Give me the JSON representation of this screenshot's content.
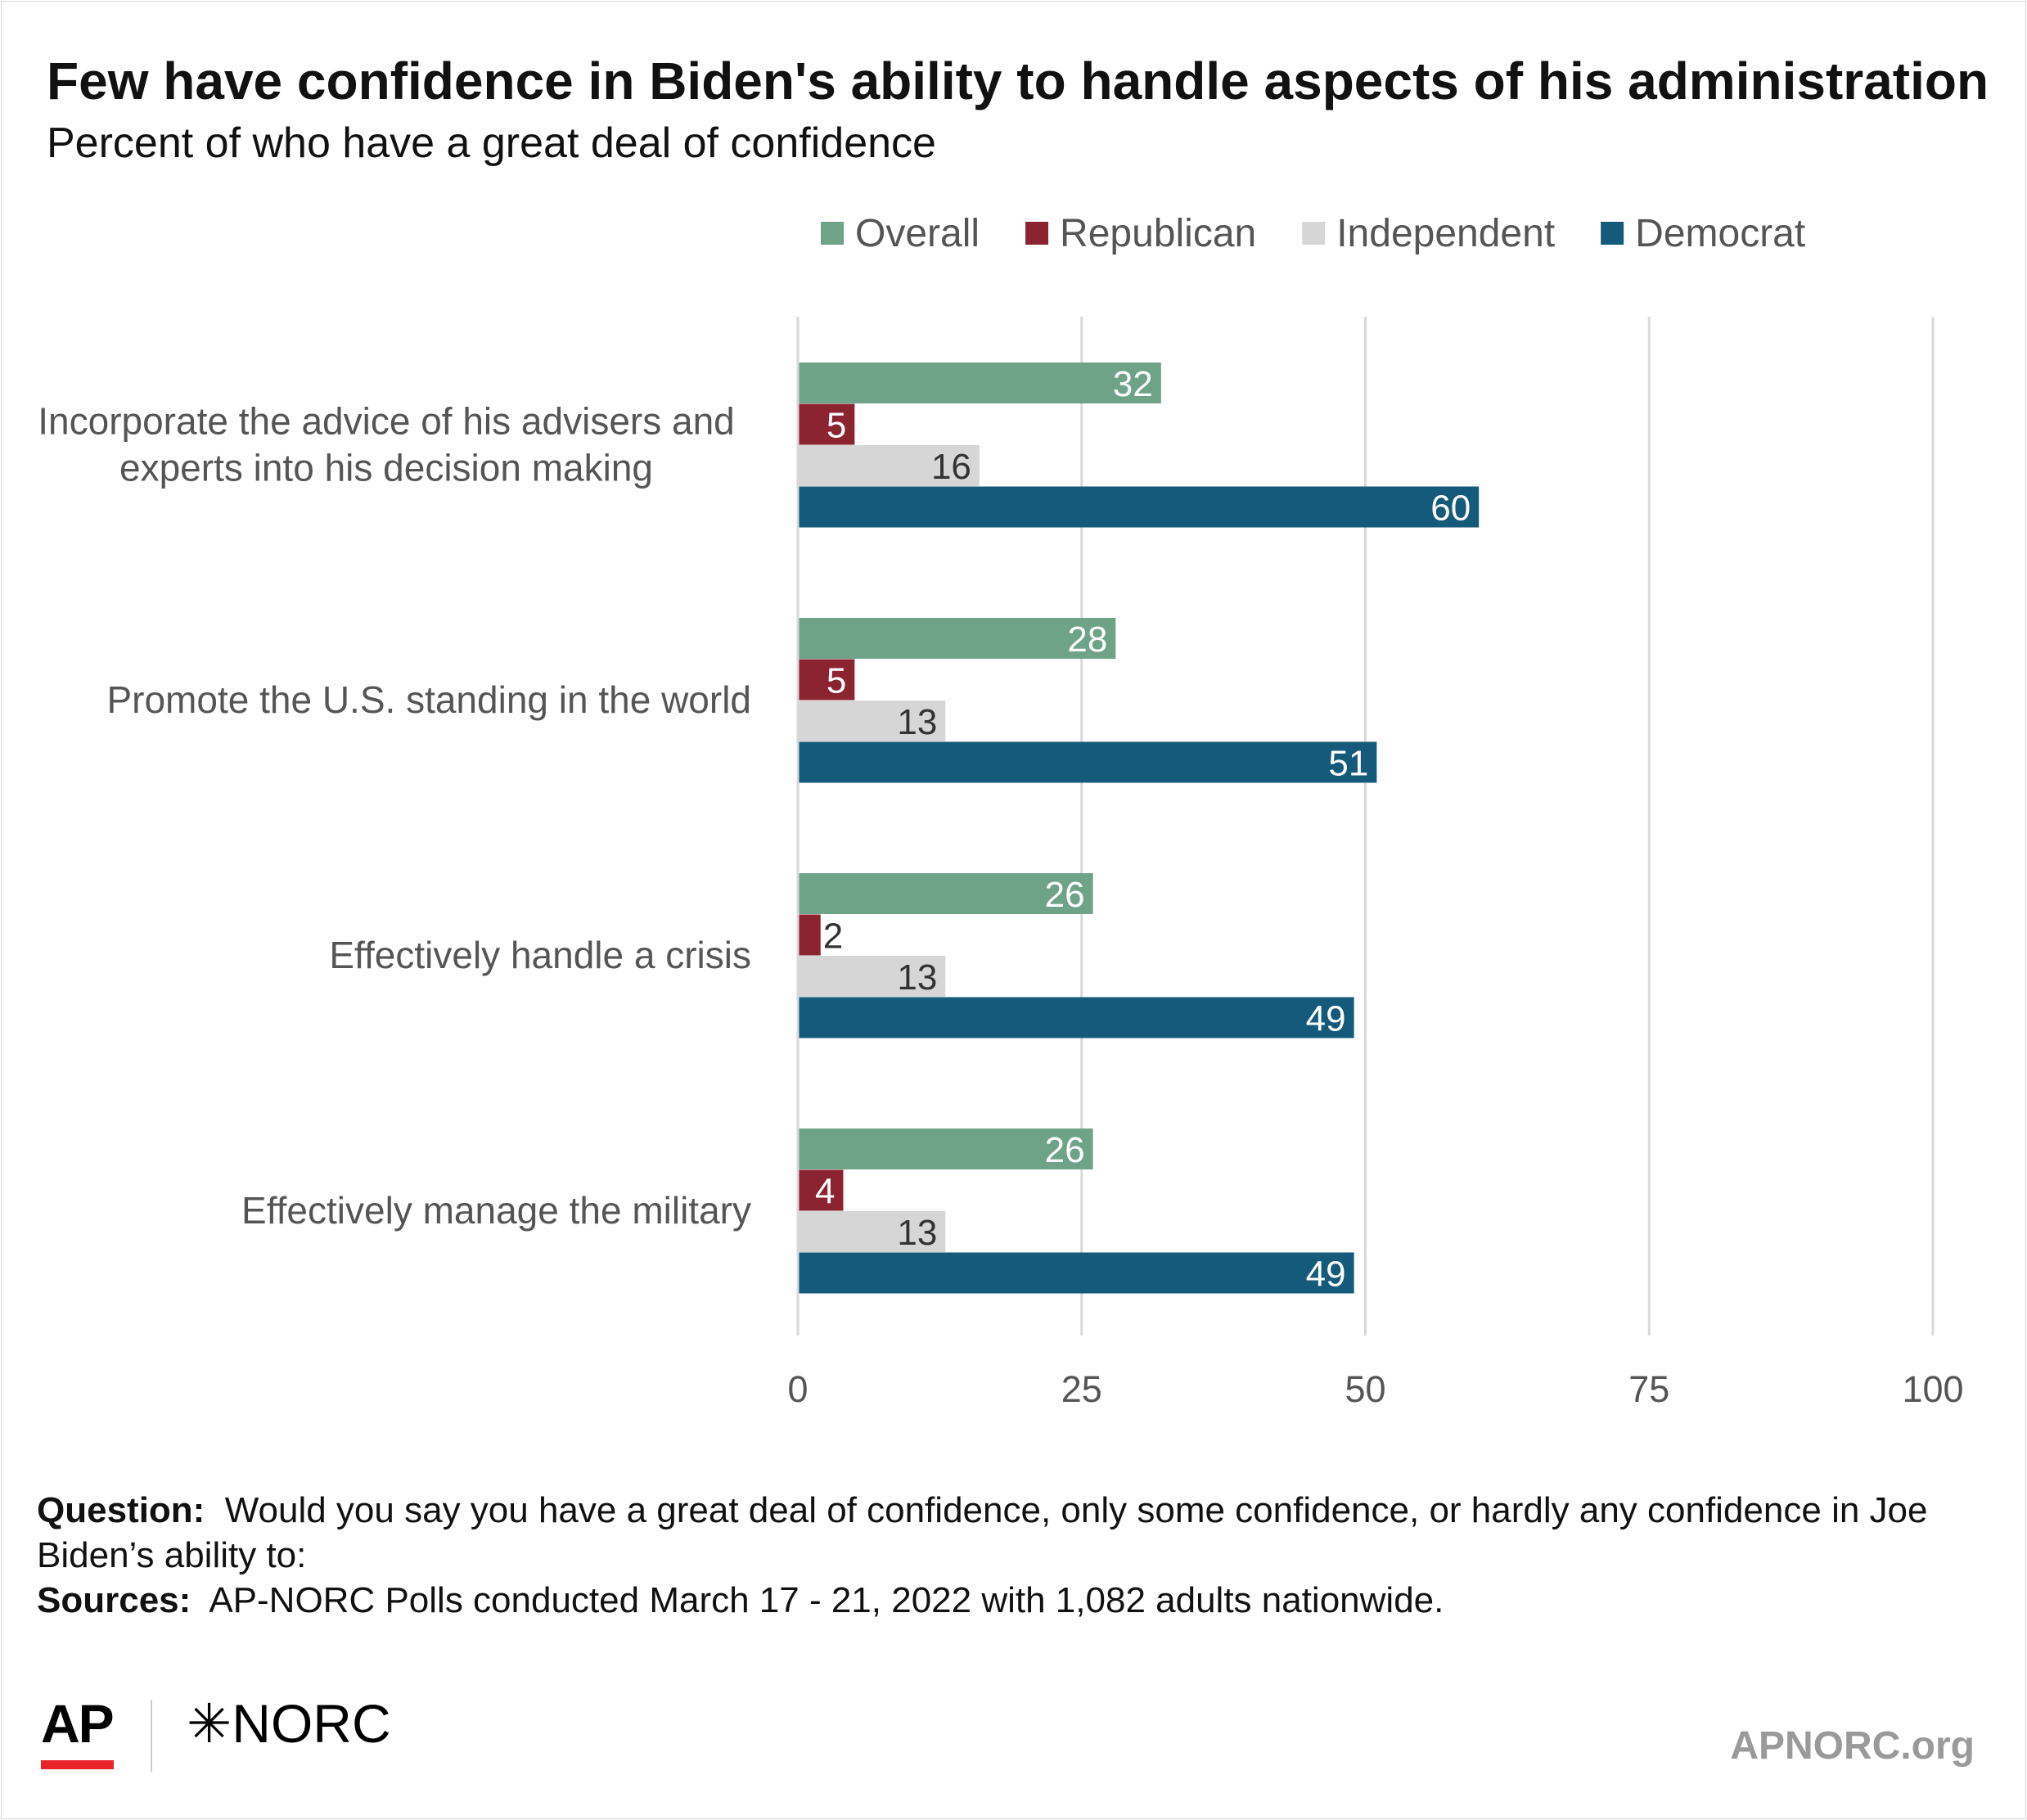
{
  "header": {
    "title": "Few have confidence in Biden's ability to handle aspects of his administration",
    "subtitle": "Percent of who have a great deal of confidence"
  },
  "chart_data": {
    "type": "bar",
    "orientation": "horizontal",
    "categories": [
      [
        "Incorporate the advice of his advisers and",
        "experts into his decision making"
      ],
      [
        "Promote the U.S. standing in the world"
      ],
      [
        "Effectively handle a crisis"
      ],
      [
        "Effectively manage the military"
      ]
    ],
    "series": [
      {
        "name": "Overall",
        "color": "#6fa387",
        "label_color": "#ffffff",
        "values": [
          32,
          28,
          26,
          26
        ]
      },
      {
        "name": "Republican",
        "color": "#8b2331",
        "label_color": "#ffffff",
        "values": [
          5,
          5,
          2,
          4
        ]
      },
      {
        "name": "Independent",
        "color": "#d6d6d6",
        "label_color": "#333333",
        "values": [
          16,
          13,
          13,
          13
        ]
      },
      {
        "name": "Democrat",
        "color": "#155a7a",
        "label_color": "#ffffff",
        "values": [
          60,
          51,
          49,
          49
        ]
      }
    ],
    "xlim": [
      0,
      100
    ],
    "xticks": [
      0,
      25,
      50,
      75,
      100
    ],
    "grid": true,
    "legend_position": "top-right",
    "data_labels": true
  },
  "notes": {
    "question_label": "Question:",
    "question_text": "Would you say you have a great deal of confidence, only some confidence, or hardly any confidence in Joe Biden’s ability to:",
    "sources_label": "Sources:",
    "sources_text": "AP-NORC Polls conducted March 17 - 21, 2022 with 1,082 adults nationwide."
  },
  "footer": {
    "ap_logo": "AP",
    "norc_logo": "✳NORC",
    "site": "APNORC.org"
  }
}
